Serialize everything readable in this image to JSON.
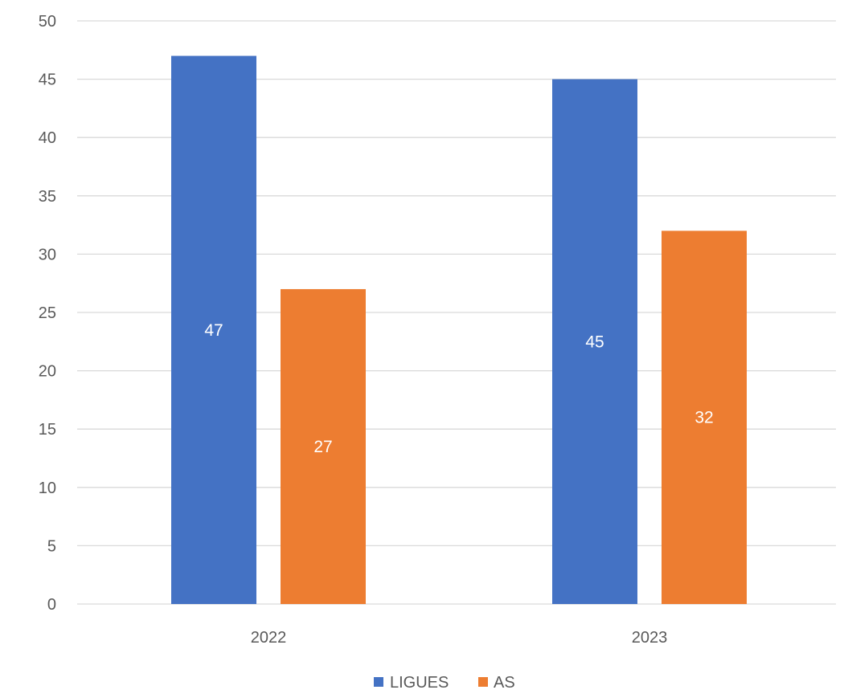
{
  "chart_data": {
    "type": "bar",
    "title": "",
    "xlabel": "",
    "ylabel": "",
    "categories": [
      "2022",
      "2023"
    ],
    "series": [
      {
        "name": "LIGUES",
        "values": [
          47,
          45
        ],
        "color": "#4472C4"
      },
      {
        "name": "AS",
        "values": [
          27,
          32
        ],
        "color": "#ED7D31"
      }
    ],
    "ylim": [
      0,
      50
    ],
    "yticks": [
      0,
      5,
      10,
      15,
      20,
      25,
      30,
      35,
      40,
      45,
      50
    ],
    "grid": true,
    "legend_position": "bottom",
    "data_labels": true
  }
}
